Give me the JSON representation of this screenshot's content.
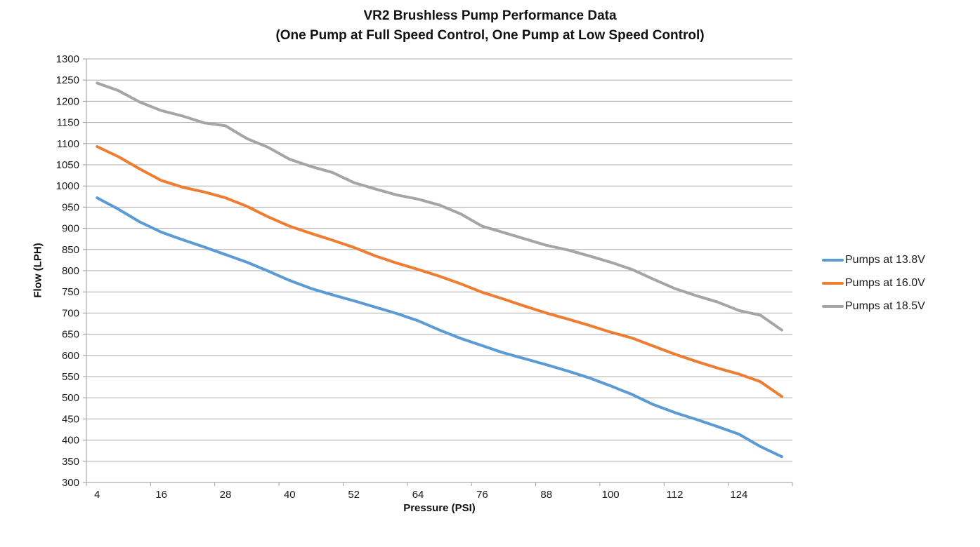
{
  "chart": {
    "title": "VR2 Brushless Pump Performance Data",
    "subtitle": "(One Pump at Full Speed Control, One Pump at Low Speed Control)"
  },
  "chart_data": {
    "type": "line",
    "title": "VR2 Brushless Pump Performance Data",
    "subtitle": "(One Pump at Full Speed Control, One Pump at Low Speed Control)",
    "xlabel": "Pressure (PSI)",
    "ylabel": "Flow (LPH)",
    "ylim": [
      300,
      1300
    ],
    "y_tick_step": 50,
    "grid": "horizontal",
    "legend_position": "right",
    "gridline_color": "#ABABAB",
    "axis_color": "#9A9A9A",
    "x": [
      4,
      8,
      12,
      16,
      20,
      24,
      28,
      32,
      36,
      40,
      44,
      48,
      52,
      56,
      60,
      64,
      68,
      72,
      76,
      80,
      84,
      88,
      92,
      96,
      100,
      104,
      108,
      112,
      116,
      120,
      124,
      128,
      132
    ],
    "x_tick_labels": [
      "4",
      "16",
      "28",
      "40",
      "52",
      "64",
      "76",
      "88",
      "100",
      "112",
      "124"
    ],
    "series": [
      {
        "name": "Pumps at 13.8V",
        "color": "#5B9BD5",
        "values": [
          972,
          945,
          915,
          891,
          873,
          856,
          838,
          820,
          799,
          777,
          758,
          743,
          729,
          714,
          699,
          682,
          660,
          640,
          623,
          606,
          592,
          578,
          563,
          547,
          528,
          508,
          484,
          465,
          449,
          432,
          414,
          385,
          361
        ]
      },
      {
        "name": "Pumps at 16.0V",
        "color": "#ED7D31",
        "values": [
          1093,
          1069,
          1040,
          1013,
          997,
          986,
          972,
          952,
          927,
          905,
          888,
          872,
          855,
          835,
          818,
          803,
          787,
          769,
          749,
          733,
          716,
          700,
          686,
          671,
          655,
          641,
          622,
          603,
          586,
          570,
          556,
          538,
          503
        ]
      },
      {
        "name": "Pumps at 18.5V",
        "color": "#A5A5A5",
        "values": [
          1243,
          1225,
          1198,
          1178,
          1165,
          1149,
          1142,
          1112,
          1091,
          1063,
          1046,
          1032,
          1008,
          993,
          979,
          969,
          955,
          934,
          905,
          890,
          875,
          860,
          849,
          835,
          820,
          803,
          780,
          758,
          741,
          726,
          706,
          695,
          660
        ]
      }
    ]
  }
}
